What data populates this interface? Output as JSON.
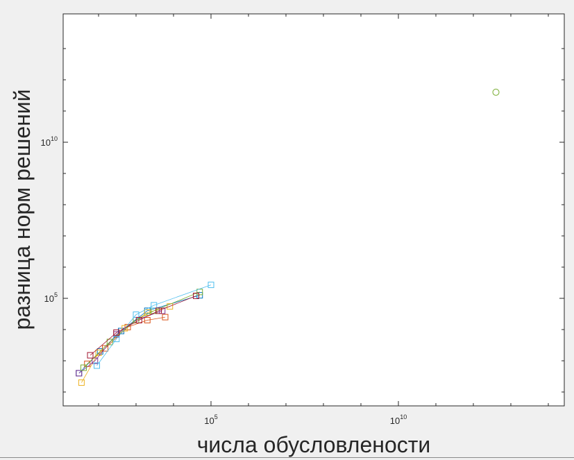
{
  "chart_data": {
    "type": "scatter",
    "xlabel": "числа обусловлености",
    "ylabel": "разница норм решений",
    "xscale": "log",
    "yscale": "log",
    "xlim": [
      10.0,
      100000000000000.0
    ],
    "ylim": [
      100.0,
      10000000000000.0
    ],
    "xticks": [
      {
        "base": "10",
        "exp": "5",
        "value": 100000.0
      },
      {
        "base": "10",
        "exp": "10",
        "value": 10000000000.0
      }
    ],
    "yticks": [
      {
        "base": "10",
        "exp": "5",
        "value": 100000.0
      },
      {
        "base": "10",
        "exp": "10",
        "value": 10000000000.0
      }
    ],
    "grid": false,
    "legend": "none",
    "series": [
      {
        "color": "#0072BD",
        "marker": "square",
        "points": [
          [
            30,
            400
          ],
          [
            110,
            2000
          ],
          [
            400,
            9000
          ],
          [
            2000,
            40000
          ],
          [
            50000,
            125000
          ]
        ]
      },
      {
        "color": "#D95319",
        "marker": "square",
        "points": [
          [
            50,
            800
          ],
          [
            150,
            2500
          ],
          [
            600,
            12000
          ],
          [
            2000,
            20000
          ],
          [
            6000,
            25000
          ]
        ]
      },
      {
        "color": "#EDB120",
        "marker": "square",
        "points": [
          [
            35,
            200
          ],
          [
            100,
            1800
          ],
          [
            500,
            11000
          ],
          [
            2000,
            35000
          ],
          [
            8000,
            55000
          ]
        ]
      },
      {
        "color": "#7E2F8E",
        "marker": "square",
        "points": [
          [
            30,
            400
          ],
          [
            80,
            1000
          ],
          [
            300,
            7000
          ],
          [
            1000,
            20000
          ],
          [
            5000,
            40000
          ]
        ]
      },
      {
        "color": "#77AC30",
        "marker": "square",
        "points": [
          [
            40,
            600
          ],
          [
            200,
            4000
          ],
          [
            1000,
            20000
          ],
          [
            3000,
            40000
          ],
          [
            50000,
            160000
          ]
        ]
      },
      {
        "color": "#4DBEEE",
        "marker": "square",
        "points": [
          [
            90,
            700
          ],
          [
            300,
            5000
          ],
          [
            1000,
            30000
          ],
          [
            3000,
            60000
          ],
          [
            100000,
            270000
          ]
        ]
      },
      {
        "color": "#A2142F",
        "marker": "square",
        "points": [
          [
            60,
            1500
          ],
          [
            300,
            8000
          ],
          [
            1200,
            20000
          ],
          [
            4000,
            40000
          ],
          [
            40000,
            120000
          ]
        ]
      },
      {
        "color": "#77AC30",
        "marker": "circle",
        "points": [
          [
            4000000000000.0,
            400000000000.0
          ]
        ]
      }
    ]
  }
}
